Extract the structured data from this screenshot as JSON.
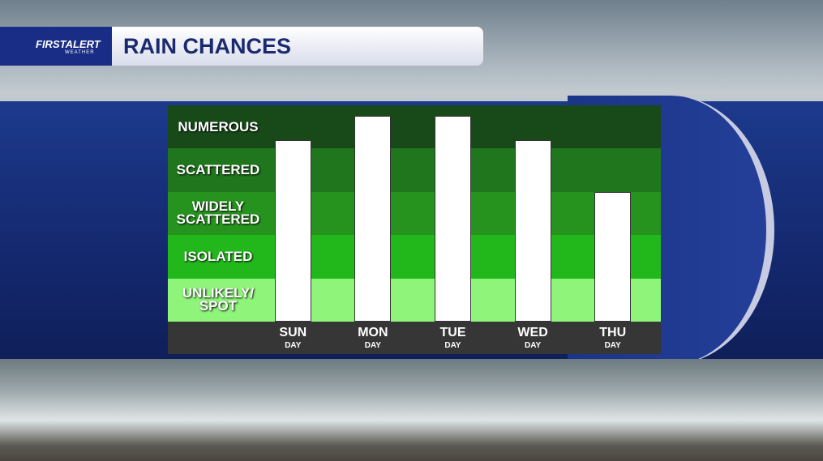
{
  "brand": {
    "name": "FIRSTALERT",
    "sub": "WEATHER"
  },
  "chart_data": {
    "type": "bar",
    "title": "RAIN CHANCES",
    "categories": [
      "SUN",
      "MON",
      "TUE",
      "WED",
      "THU"
    ],
    "sublabels": [
      "DAY",
      "DAY",
      "DAY",
      "DAY",
      "DAY"
    ],
    "values": [
      4.2,
      4.75,
      4.75,
      4.2,
      3.0
    ],
    "color": "#ffffff",
    "ylim": [
      0,
      5
    ],
    "levels": [
      "UNLIKELY/\nSPOT",
      "ISOLATED",
      "WIDELY\nSCATTERED",
      "SCATTERED",
      "NUMEROUS"
    ],
    "level_colors": [
      "#8ef57a",
      "#22b81c",
      "#27931f",
      "#1f761d",
      "#184a19"
    ]
  }
}
